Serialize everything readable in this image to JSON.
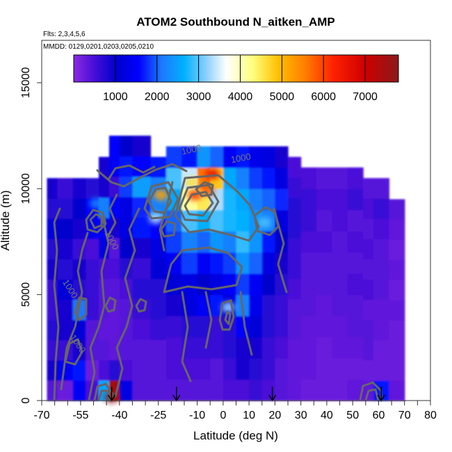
{
  "chart_data": {
    "type": "heatmap",
    "title": "ATOM2 Southbound N_aitken_AMP",
    "subtitle_flights": "Flts: 2,3,4,5,6",
    "subtitle_dates": "MMDD: 0129,0201,0203,0205,0210",
    "xlabel": "Latitude (deg N)",
    "ylabel": "Altitude (m)",
    "xlim": [
      -70,
      80
    ],
    "ylim": [
      0,
      17000
    ],
    "x_ticks": [
      {
        "value": -70,
        "label": "-70"
      },
      {
        "value": -55,
        "label": "-55"
      },
      {
        "value": -40,
        "label": "-40"
      },
      {
        "value": -25,
        "label": "-25"
      },
      {
        "value": -10,
        "label": "-10"
      },
      {
        "value": 0,
        "label": "0"
      },
      {
        "value": 10,
        "label": "10"
      },
      {
        "value": 20,
        "label": "20"
      },
      {
        "value": 30,
        "label": "30"
      },
      {
        "value": 40,
        "label": "40"
      },
      {
        "value": 50,
        "label": "50"
      },
      {
        "value": 60,
        "label": "60"
      },
      {
        "value": 70,
        "label": "70"
      },
      {
        "value": 80,
        "label": "80"
      }
    ],
    "x_minor_ticks": [
      -65,
      -60,
      -50,
      -45,
      -35,
      -30,
      -20,
      -15,
      -5,
      5,
      15,
      25,
      35,
      45,
      55,
      65,
      75
    ],
    "y_ticks": [
      {
        "value": 0,
        "label": "0"
      },
      {
        "value": 5000,
        "label": "5000"
      },
      {
        "value": 10000,
        "label": "10000"
      },
      {
        "value": 15000,
        "label": "15000"
      }
    ],
    "colorbar": {
      "min": 0,
      "max": 7800,
      "tick_values": [
        1000,
        2000,
        3000,
        4000,
        5000,
        6000,
        7000
      ],
      "tick_labels": [
        "1000",
        "2000",
        "3000",
        "4000",
        "5000",
        "6000",
        "7000"
      ]
    },
    "contour_labels": [
      {
        "text": "1000",
        "x": -12,
        "y": 11700,
        "angle": -12
      },
      {
        "text": "1000",
        "x": 7,
        "y": 11300,
        "angle": -10
      },
      {
        "text": "1000",
        "x": -44,
        "y": 7500,
        "angle": 62
      },
      {
        "text": "1000",
        "x": -60,
        "y": 5200,
        "angle": 58
      },
      {
        "text": "1000",
        "x": -57,
        "y": 2600,
        "angle": 55
      }
    ],
    "data_columns": [
      {
        "x0": -68,
        "x1": -64,
        "ymax": 10500,
        "values": [
          500,
          900,
          700,
          800,
          700,
          700,
          900,
          800,
          1200,
          800,
          900
        ]
      },
      {
        "x0": -64,
        "x1": -58,
        "ymax": 10500,
        "values": [
          300,
          1400,
          700,
          900,
          900,
          1100,
          800,
          900,
          1000,
          800,
          700
        ]
      },
      {
        "x0": -58,
        "x1": -53,
        "ymax": 10500,
        "values": [
          1400,
          1600,
          900,
          1100,
          2100,
          800,
          900,
          700,
          900,
          1000,
          900
        ]
      },
      {
        "x0": -53,
        "x1": -48,
        "ymax": 10500,
        "values": [
          600,
          300,
          500,
          500,
          700,
          700,
          700,
          600,
          1400,
          1500,
          800
        ]
      },
      {
        "x0": -48,
        "x1": -44,
        "ymax": 11500,
        "values": [
          2600,
          600,
          500,
          400,
          500,
          500,
          600,
          1200,
          1500,
          2200,
          900,
          900
        ]
      },
      {
        "x0": -44,
        "x1": -40,
        "ymax": 12500,
        "values": [
          7500,
          800,
          400,
          400,
          400,
          500,
          600,
          500,
          900,
          1500,
          700,
          1400,
          1500
        ]
      },
      {
        "x0": -40,
        "x1": -35,
        "ymax": 12500,
        "values": [
          1200,
          600,
          500,
          500,
          500,
          600,
          800,
          1000,
          1200,
          1200,
          1800,
          1600,
          1000
        ]
      },
      {
        "x0": -35,
        "x1": -28,
        "ymax": 12500,
        "values": [
          500,
          500,
          500,
          600,
          700,
          800,
          700,
          900,
          1600,
          1700,
          2500,
          1500,
          900
        ]
      },
      {
        "x0": -28,
        "x1": -22,
        "ymax": 11500,
        "values": [
          500,
          500,
          500,
          700,
          800,
          800,
          1100,
          1200,
          1500,
          2200,
          2200,
          1600
        ]
      },
      {
        "x0": -22,
        "x1": -16,
        "ymax": 12000,
        "values": [
          500,
          600,
          600,
          700,
          900,
          1100,
          1400,
          1800,
          2000,
          2600,
          3000,
          1800
        ]
      },
      {
        "x0": -16,
        "x1": -10,
        "ymax": 12000,
        "values": [
          500,
          600,
          700,
          800,
          1200,
          1200,
          1800,
          2200,
          3000,
          4200,
          3500,
          1600
        ]
      },
      {
        "x0": -10,
        "x1": -5,
        "ymax": 12000,
        "values": [
          500,
          600,
          700,
          800,
          1400,
          1000,
          1400,
          2000,
          2700,
          4500,
          5600,
          2400
        ]
      },
      {
        "x0": -5,
        "x1": 0,
        "ymax": 12000,
        "values": [
          500,
          500,
          700,
          700,
          1600,
          1200,
          1600,
          2400,
          3000,
          3400,
          4800,
          2000
        ]
      },
      {
        "x0": 0,
        "x1": 5,
        "ymax": 12000,
        "values": [
          600,
          700,
          800,
          800,
          1200,
          1400,
          1800,
          2200,
          2800,
          2800,
          2600,
          1400
        ]
      },
      {
        "x0": 5,
        "x1": 10,
        "ymax": 12000,
        "values": [
          600,
          900,
          900,
          1500,
          2200,
          1800,
          2400,
          2900,
          2700,
          2600,
          2200,
          1600
        ]
      },
      {
        "x0": 10,
        "x1": 15,
        "ymax": 12000,
        "values": [
          700,
          800,
          900,
          1100,
          1300,
          1400,
          2000,
          2400,
          2400,
          2200,
          1800,
          1300
        ]
      },
      {
        "x0": 15,
        "x1": 20,
        "ymax": 12000,
        "values": [
          600,
          700,
          700,
          800,
          800,
          1000,
          1200,
          1600,
          2200,
          2000,
          1600,
          1200
        ]
      },
      {
        "x0": 20,
        "x1": 25,
        "ymax": 12000,
        "values": [
          500,
          500,
          600,
          700,
          700,
          800,
          900,
          1000,
          1200,
          1700,
          1200,
          900
        ]
      },
      {
        "x0": 25,
        "x1": 30,
        "ymax": 11500,
        "values": [
          400,
          400,
          400,
          500,
          500,
          600,
          700,
          700,
          800,
          800,
          700,
          600
        ]
      },
      {
        "x0": 30,
        "x1": 36,
        "ymax": 11000,
        "values": [
          300,
          400,
          400,
          400,
          500,
          500,
          500,
          600,
          700,
          700,
          600
        ]
      },
      {
        "x0": 36,
        "x1": 42,
        "ymax": 11000,
        "values": [
          300,
          300,
          300,
          400,
          400,
          500,
          500,
          600,
          500,
          600,
          500
        ]
      },
      {
        "x0": 42,
        "x1": 48,
        "ymax": 11000,
        "values": [
          300,
          300,
          400,
          400,
          500,
          500,
          500,
          500,
          600,
          600,
          500
        ]
      },
      {
        "x0": 48,
        "x1": 54,
        "ymax": 11000,
        "values": [
          400,
          300,
          400,
          500,
          500,
          600,
          500,
          600,
          500,
          700,
          600
        ]
      },
      {
        "x0": 54,
        "x1": 58,
        "ymax": 10500,
        "values": [
          400,
          300,
          500,
          500,
          400,
          600,
          500,
          600,
          500,
          600,
          500
        ]
      },
      {
        "x0": 58,
        "x1": 64,
        "ymax": 10500,
        "values": [
          1600,
          300,
          300,
          400,
          400,
          500,
          500,
          500,
          600,
          700,
          500
        ]
      },
      {
        "x0": 64,
        "x1": 70,
        "ymax": 9500,
        "values": [
          400,
          300,
          300,
          300,
          400,
          300,
          400,
          300,
          400,
          500
        ]
      }
    ],
    "hotspots": [
      {
        "x": -4,
        "y": 10700,
        "value": 6600
      },
      {
        "x": -6,
        "y": 9900,
        "value": 5800
      },
      {
        "x": -11,
        "y": 9700,
        "value": 6000
      },
      {
        "x": -12,
        "y": 10300,
        "value": 4600
      },
      {
        "x": -24,
        "y": 9700,
        "value": 5200
      },
      {
        "x": -26,
        "y": 8600,
        "value": 3400
      },
      {
        "x": -49,
        "y": 9300,
        "value": 2200
      },
      {
        "x": 2,
        "y": 4400,
        "value": 3300
      },
      {
        "x": 16,
        "y": 8400,
        "value": 3000
      },
      {
        "x": -43,
        "y": 150,
        "value": 7600
      }
    ],
    "arrows": [
      {
        "x": -43
      },
      {
        "x": -18
      },
      {
        "x": 19
      },
      {
        "x": 61
      }
    ]
  }
}
